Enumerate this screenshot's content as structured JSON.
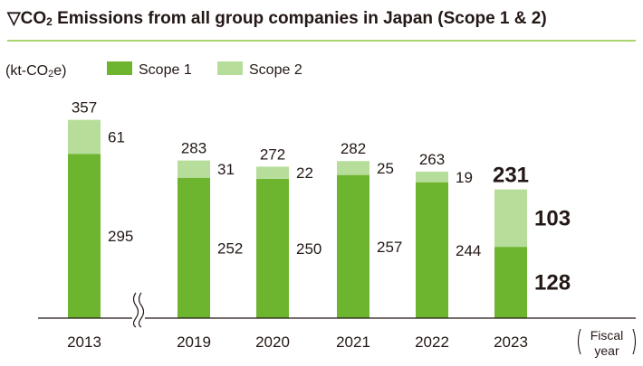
{
  "chart_data": {
    "type": "bar",
    "stacked": true,
    "title_prefix": "▽CO",
    "title_subscript": "2",
    "title_suffix": " Emissions from all group companies in Japan (Scope 1 & 2)",
    "unit_prefix": "(kt-CO",
    "unit_subscript": "2",
    "unit_suffix": "e)",
    "xlabel_line1": "Fiscal",
    "xlabel_line2": "year",
    "categories": [
      "2013",
      "2019",
      "2020",
      "2021",
      "2022",
      "2023"
    ],
    "axis_break_after": "2013",
    "series": [
      {
        "name": "Scope 1",
        "color": "#6db52e",
        "values": [
          295,
          252,
          250,
          257,
          244,
          128
        ]
      },
      {
        "name": "Scope 2",
        "color": "#b7dd9a",
        "values": [
          61,
          31,
          22,
          25,
          19,
          103
        ]
      }
    ],
    "totals": [
      357,
      283,
      272,
      282,
      263,
      231
    ],
    "highlight_category": "2023",
    "highlight_color": "#6db52e",
    "ylim": [
      0,
      370
    ],
    "grid": false,
    "legend_position": "top-left"
  }
}
